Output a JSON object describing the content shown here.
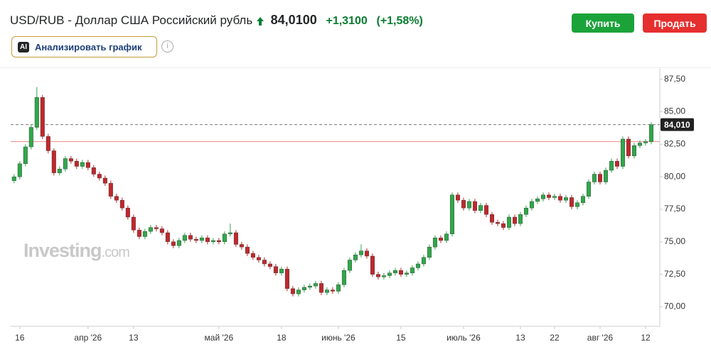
{
  "header": {
    "title": "USD/RUB - Доллар США Российский рубль",
    "price": "84,0100",
    "change": "+1,3100",
    "change_pct": "(+1,58%)",
    "buy": "Купить",
    "sell": "Продать",
    "ai_badge": "AI",
    "analyze": "Анализировать график"
  },
  "watermark": {
    "brand": "Investing",
    "suffix": ".com"
  },
  "chart_data": {
    "type": "candlestick",
    "xlim": [
      -0.6,
      113.5
    ],
    "xticks": [
      {
        "value": 1,
        "label": "16"
      },
      {
        "value": 13,
        "label": "апр '26"
      },
      {
        "value": 21,
        "label": "13"
      },
      {
        "value": 36,
        "label": "май '26"
      },
      {
        "value": 47,
        "label": "18"
      },
      {
        "value": 57,
        "label": "июнь '26"
      },
      {
        "value": 68,
        "label": "15"
      },
      {
        "value": 79,
        "label": "июль '26"
      },
      {
        "value": 89,
        "label": "13"
      },
      {
        "value": 95,
        "label": "22"
      },
      {
        "value": 103,
        "label": "авг '26"
      },
      {
        "value": 111,
        "label": "12"
      }
    ],
    "ylim": [
      68.5,
      88.3
    ],
    "yticks": [
      {
        "value": 70,
        "label": "70,00"
      },
      {
        "value": 72.5,
        "label": "72,50"
      },
      {
        "value": 75,
        "label": "75,00"
      },
      {
        "value": 77.5,
        "label": "77,50"
      },
      {
        "value": 80,
        "label": "80,00"
      },
      {
        "value": 82.5,
        "label": "82,50"
      },
      {
        "value": 85,
        "label": "85,00"
      },
      {
        "value": 87.5,
        "label": "87,50"
      }
    ],
    "up_color": "#2fa84a",
    "down_color": "#c0282c",
    "last_price": {
      "value": 84.01,
      "label": "84,010"
    },
    "prev_close_line": 82.7,
    "open": [
      79.7,
      80.0,
      81.0,
      82.3,
      83.8,
      86.1,
      83.1,
      82.0,
      80.3,
      80.6,
      81.4,
      81.2,
      80.8,
      81.1,
      80.7,
      80.2,
      79.9,
      79.5,
      78.5,
      78.2,
      77.6,
      76.9,
      75.9,
      75.4,
      75.8,
      76.1,
      76.0,
      75.7,
      75.0,
      74.7,
      75.1,
      75.5,
      75.2,
      75.1,
      75.3,
      75.0,
      75.1,
      75.0,
      75.6,
      75.7,
      74.8,
      74.6,
      74.1,
      73.8,
      73.6,
      73.3,
      73.1,
      72.6,
      72.9,
      71.4,
      71.0,
      71.3,
      71.5,
      71.6,
      71.8,
      71.1,
      71.3,
      71.2,
      71.7,
      72.8,
      73.6,
      74.0,
      74.3,
      73.9,
      72.5,
      72.3,
      72.4,
      72.6,
      72.8,
      72.5,
      72.6,
      73.0,
      73.3,
      73.8,
      74.6,
      75.3,
      75.1,
      75.6,
      78.6,
      78.2,
      77.6,
      78.1,
      77.4,
      77.8,
      77.1,
      76.5,
      76.4,
      76.1,
      76.9,
      76.4,
      77.1,
      77.6,
      78.1,
      78.3,
      78.6,
      78.4,
      78.5,
      78.2,
      78.4,
      77.7,
      78.0,
      78.5,
      79.6,
      80.2,
      79.6,
      80.5,
      81.2,
      80.8,
      82.9,
      81.6,
      82.4,
      82.6,
      82.7
    ],
    "high": [
      80.2,
      81.2,
      82.5,
      84.0,
      86.9,
      86.3,
      83.3,
      82.2,
      80.8,
      81.6,
      81.6,
      81.4,
      81.3,
      81.3,
      80.9,
      80.4,
      80.1,
      79.7,
      78.7,
      78.4,
      77.8,
      77.1,
      76.1,
      76.0,
      76.3,
      76.3,
      76.2,
      75.9,
      75.2,
      75.3,
      75.7,
      75.7,
      75.4,
      75.5,
      75.5,
      75.3,
      75.3,
      75.8,
      76.4,
      75.9,
      75.0,
      74.8,
      74.3,
      74.0,
      73.8,
      73.5,
      73.3,
      73.1,
      73.1,
      71.6,
      71.5,
      71.7,
      71.8,
      72.0,
      72.0,
      71.5,
      71.5,
      71.9,
      73.0,
      73.8,
      74.2,
      74.8,
      74.5,
      74.1,
      72.7,
      72.6,
      72.8,
      73.0,
      73.0,
      72.8,
      73.2,
      73.5,
      74.0,
      74.8,
      75.5,
      75.5,
      75.8,
      78.8,
      78.8,
      78.4,
      78.3,
      78.3,
      78.0,
      78.0,
      77.3,
      76.7,
      76.6,
      77.1,
      77.1,
      77.3,
      77.8,
      78.3,
      78.5,
      78.8,
      78.8,
      78.7,
      78.7,
      78.6,
      78.6,
      78.2,
      78.7,
      79.8,
      80.4,
      80.4,
      80.7,
      81.4,
      81.4,
      83.1,
      83.1,
      82.6,
      82.8,
      82.9,
      84.2
    ],
    "low": [
      79.5,
      79.8,
      80.8,
      82.1,
      83.6,
      82.9,
      81.8,
      80.1,
      80.1,
      80.4,
      81.0,
      80.6,
      80.6,
      80.5,
      80.0,
      79.7,
      79.3,
      78.3,
      78.0,
      77.4,
      76.7,
      75.7,
      75.2,
      75.2,
      75.6,
      75.8,
      75.5,
      74.8,
      74.5,
      74.5,
      74.9,
      75.0,
      74.9,
      74.9,
      74.8,
      74.8,
      74.8,
      74.8,
      75.4,
      74.6,
      74.4,
      73.9,
      73.6,
      73.4,
      73.1,
      72.9,
      72.4,
      72.4,
      71.2,
      70.8,
      70.8,
      71.1,
      71.3,
      71.4,
      70.9,
      70.9,
      71.0,
      71.0,
      71.5,
      72.6,
      73.4,
      73.8,
      73.7,
      72.3,
      72.1,
      72.1,
      72.2,
      72.4,
      72.3,
      72.3,
      72.4,
      72.8,
      73.1,
      73.6,
      74.4,
      74.9,
      74.9,
      75.4,
      78.0,
      77.4,
      77.4,
      77.2,
      77.2,
      76.9,
      76.3,
      76.2,
      75.9,
      75.9,
      76.2,
      76.2,
      76.9,
      77.4,
      77.9,
      78.1,
      78.2,
      78.2,
      78.0,
      78.0,
      77.5,
      77.5,
      77.8,
      78.3,
      79.4,
      79.4,
      79.4,
      80.3,
      80.6,
      80.6,
      81.4,
      81.4,
      82.2,
      82.4,
      82.5
    ],
    "close": [
      80.0,
      81.0,
      82.3,
      83.8,
      86.1,
      83.1,
      82.0,
      80.3,
      80.6,
      81.4,
      81.2,
      80.8,
      81.1,
      80.7,
      80.2,
      79.9,
      79.5,
      78.5,
      78.2,
      77.6,
      76.9,
      75.9,
      75.4,
      75.8,
      76.1,
      76.0,
      75.7,
      75.0,
      74.7,
      75.1,
      75.5,
      75.2,
      75.1,
      75.3,
      75.0,
      75.1,
      75.0,
      75.6,
      75.7,
      74.8,
      74.6,
      74.1,
      73.8,
      73.6,
      73.3,
      73.1,
      72.6,
      72.9,
      71.4,
      71.0,
      71.3,
      71.5,
      71.6,
      71.8,
      71.1,
      71.3,
      71.2,
      71.7,
      72.8,
      73.6,
      74.0,
      74.3,
      73.9,
      72.5,
      72.3,
      72.4,
      72.6,
      72.8,
      72.5,
      72.6,
      73.0,
      73.3,
      73.8,
      74.6,
      75.3,
      75.1,
      75.6,
      78.6,
      78.2,
      77.6,
      78.1,
      77.4,
      77.8,
      77.1,
      76.5,
      76.4,
      76.1,
      76.9,
      76.4,
      77.1,
      77.6,
      78.1,
      78.3,
      78.6,
      78.4,
      78.5,
      78.2,
      78.4,
      77.7,
      78.0,
      78.5,
      79.6,
      80.2,
      79.6,
      80.5,
      81.2,
      80.8,
      82.9,
      81.6,
      82.4,
      82.6,
      82.7,
      84.01
    ]
  }
}
